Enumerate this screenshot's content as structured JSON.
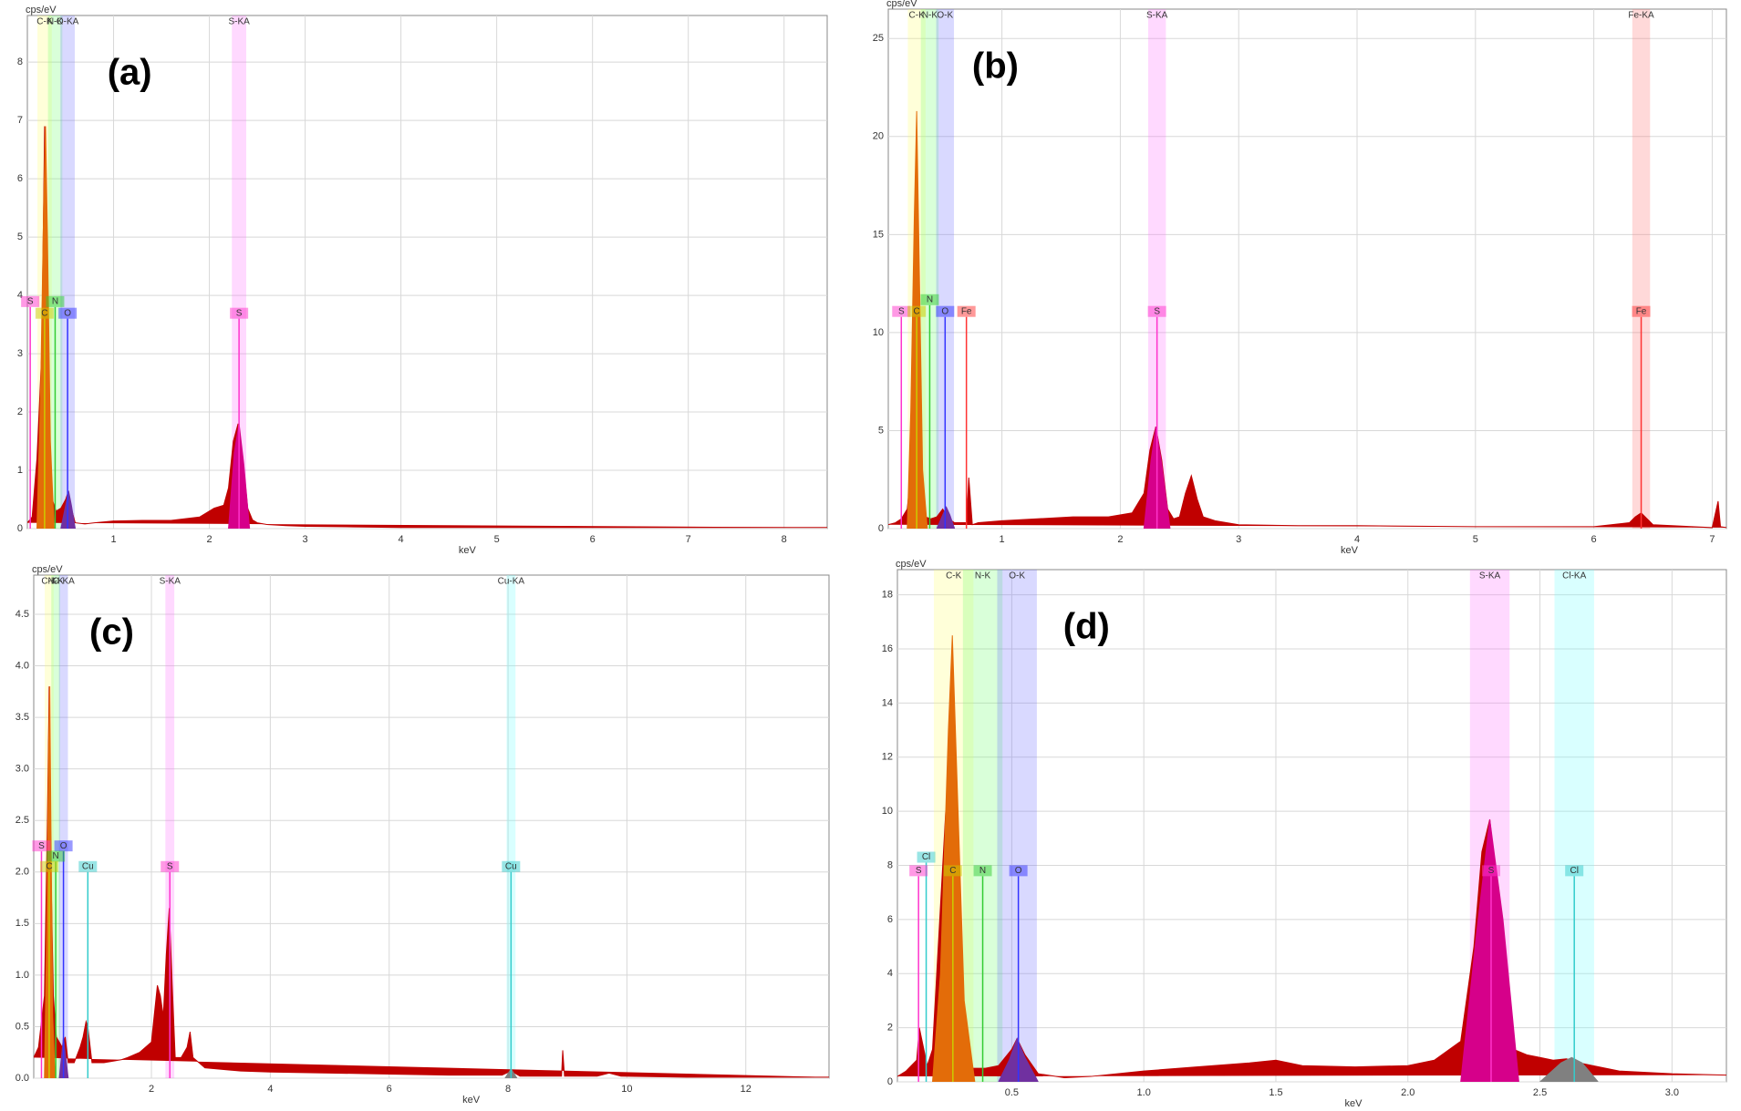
{
  "chart_data": [
    {
      "type": "area",
      "title": "(a)",
      "ylabel": "cps/eV",
      "xlabel": "keV",
      "grid": true,
      "xlim": [
        0.1,
        8.45
      ],
      "ylim": [
        0,
        8.8
      ],
      "xticks": [
        1,
        2,
        3,
        4,
        5,
        6,
        7,
        8
      ],
      "yticks": [
        0,
        1,
        2,
        3,
        4,
        5,
        6,
        7,
        8
      ],
      "series": [
        {
          "color": "#c00000",
          "x": [
            0.1,
            0.15,
            0.2,
            0.25,
            0.28,
            0.3,
            0.33,
            0.36,
            0.4,
            0.45,
            0.5,
            0.52,
            0.55,
            0.6,
            0.7,
            0.8,
            1.0,
            1.3,
            1.6,
            1.9,
            2.05,
            2.15,
            2.2,
            2.25,
            2.3,
            2.35,
            2.4,
            2.45,
            2.5,
            2.6,
            2.8,
            3.0,
            3.5,
            4,
            5,
            6,
            7,
            8,
            8.45
          ],
          "values": [
            0.1,
            0.2,
            1.2,
            3.0,
            6.9,
            4.0,
            1.5,
            0.5,
            0.3,
            0.35,
            0.5,
            0.6,
            0.4,
            0.1,
            0.08,
            0.1,
            0.13,
            0.14,
            0.14,
            0.2,
            0.35,
            0.4,
            0.7,
            1.5,
            1.8,
            1.2,
            0.35,
            0.15,
            0.1,
            0.07,
            0.05,
            0.04,
            0.03,
            0.02,
            0.02,
            0.02,
            0.02,
            0.02,
            0.02
          ]
        },
        {
          "color": "#e36c09",
          "x": [
            0.2,
            0.24,
            0.27,
            0.29,
            0.31,
            0.34,
            0.38
          ],
          "values": [
            0,
            2.5,
            5.5,
            6.9,
            5.0,
            1.5,
            0
          ]
        },
        {
          "color": "#7030a0",
          "x": [
            0.45,
            0.5,
            0.53,
            0.56,
            0.6
          ],
          "values": [
            0,
            0.4,
            0.65,
            0.4,
            0
          ]
        },
        {
          "color": "#d6008a",
          "x": [
            2.2,
            2.26,
            2.31,
            2.36,
            2.42
          ],
          "values": [
            0,
            1.3,
            1.8,
            1.1,
            0
          ]
        }
      ],
      "bands": [
        {
          "label": "C-K",
          "x": 0.28,
          "color": "#ffff66"
        },
        {
          "label": "N-K",
          "x": 0.39,
          "color": "#66ff66"
        },
        {
          "label": "O-KA",
          "x": 0.52,
          "color": "#6666ff"
        },
        {
          "label": "S-KA",
          "x": 2.31,
          "color": "#ff66ff"
        }
      ],
      "markers": [
        {
          "label": "S",
          "x": 0.13,
          "y": 3.8,
          "color": "#ff33cc"
        },
        {
          "label": "N",
          "x": 0.39,
          "y": 3.8,
          "color": "#33cc33"
        },
        {
          "label": "C",
          "x": 0.28,
          "y": 3.6,
          "color": "#cccc00"
        },
        {
          "label": "O",
          "x": 0.52,
          "y": 3.6,
          "color": "#3333ff"
        },
        {
          "label": "S",
          "x": 2.31,
          "y": 3.6,
          "color": "#ff33cc"
        }
      ]
    },
    {
      "type": "area",
      "title": "(b)",
      "ylabel": "cps/eV",
      "xlabel": "keV",
      "grid": true,
      "xlim": [
        0.04,
        7.12
      ],
      "ylim": [
        0,
        26.5
      ],
      "xticks": [
        1,
        2,
        3,
        4,
        5,
        6,
        7
      ],
      "yticks": [
        0,
        5,
        10,
        15,
        20,
        25
      ],
      "series": [
        {
          "color": "#c00000",
          "x": [
            0.04,
            0.1,
            0.15,
            0.2,
            0.25,
            0.3,
            0.35,
            0.4,
            0.45,
            0.5,
            0.55,
            0.6,
            0.65,
            0.7,
            0.72,
            0.75,
            0.8,
            1.0,
            1.3,
            1.6,
            1.9,
            2.1,
            2.2,
            2.25,
            2.3,
            2.35,
            2.4,
            2.45,
            2.5,
            2.55,
            2.6,
            2.65,
            2.7,
            2.8,
            3.0,
            3.5,
            4,
            5,
            6,
            6.3,
            6.35,
            6.4,
            6.45,
            6.5,
            7,
            7.05,
            7.07,
            7.12
          ],
          "values": [
            0.2,
            0.3,
            0.5,
            1.0,
            4,
            1.5,
            0.6,
            0.5,
            0.6,
            1.0,
            0.5,
            0.3,
            0.3,
            0.3,
            2.6,
            0.2,
            0.3,
            0.4,
            0.5,
            0.6,
            0.6,
            0.8,
            1.8,
            4.0,
            5.2,
            3.5,
            1.0,
            0.5,
            0.6,
            1.8,
            2.7,
            1.5,
            0.6,
            0.4,
            0.2,
            0.15,
            0.15,
            0.1,
            0.1,
            0.3,
            0.6,
            0.8,
            0.5,
            0.2,
            0.05,
            1.4,
            0.1,
            0.05
          ]
        },
        {
          "color": "#e36c09",
          "x": [
            0.2,
            0.23,
            0.26,
            0.28,
            0.3,
            0.33,
            0.37
          ],
          "values": [
            0,
            6,
            16,
            21.3,
            14,
            3,
            0
          ]
        },
        {
          "color": "#7030a0",
          "x": [
            0.45,
            0.5,
            0.53,
            0.56,
            0.6
          ],
          "values": [
            0,
            0.7,
            1.1,
            0.7,
            0
          ]
        },
        {
          "color": "#d6008a",
          "x": [
            2.2,
            2.26,
            2.3,
            2.35,
            2.42
          ],
          "values": [
            0,
            3.5,
            5.2,
            3.3,
            0
          ]
        }
      ],
      "bands": [
        {
          "label": "C-K",
          "x": 0.28,
          "color": "#ffff66"
        },
        {
          "label": "N-K",
          "x": 0.39,
          "color": "#66ff66"
        },
        {
          "label": "O-K",
          "x": 0.52,
          "color": "#6666ff"
        },
        {
          "label": "S-KA",
          "x": 2.31,
          "color": "#ff66ff"
        },
        {
          "label": "Fe-KA",
          "x": 6.4,
          "color": "#ff6666"
        }
      ],
      "markers": [
        {
          "label": "S",
          "x": 0.15,
          "y": 10.8,
          "color": "#ff33cc"
        },
        {
          "label": "C",
          "x": 0.28,
          "y": 10.8,
          "color": "#cccc00"
        },
        {
          "label": "N",
          "x": 0.39,
          "y": 11.4,
          "color": "#33cc33"
        },
        {
          "label": "O",
          "x": 0.52,
          "y": 10.8,
          "color": "#3333ff"
        },
        {
          "label": "Fe",
          "x": 0.7,
          "y": 10.8,
          "color": "#ff3333"
        },
        {
          "label": "S",
          "x": 2.31,
          "y": 10.8,
          "color": "#ff33cc"
        },
        {
          "label": "Fe",
          "x": 6.4,
          "y": 10.8,
          "color": "#ff3333"
        }
      ]
    },
    {
      "type": "area",
      "title": "(c)",
      "ylabel": "cps/eV",
      "xlabel": "keV",
      "grid": true,
      "xlim": [
        0.02,
        13.4
      ],
      "ylim": [
        0,
        4.88
      ],
      "xticks": [
        2,
        4,
        6,
        8,
        10,
        12
      ],
      "yticks": [
        {
          "value": 0,
          "label": "0.0"
        },
        0.5,
        {
          "value": 1,
          "label": "1.0"
        },
        1.5,
        {
          "value": 2,
          "label": "2.0"
        },
        2.5,
        {
          "value": 3,
          "label": "3.0"
        },
        3.5,
        {
          "value": 4,
          "label": "4.0"
        },
        4.5
      ],
      "series": [
        {
          "color": "#c00000",
          "x": [
            0.02,
            0.1,
            0.2,
            0.25,
            0.28,
            0.31,
            0.35,
            0.4,
            0.5,
            0.55,
            0.6,
            0.7,
            0.8,
            0.85,
            0.9,
            0.93,
            0.97,
            1.0,
            1.2,
            1.5,
            1.6,
            1.8,
            2.0,
            2.1,
            2.15,
            2.2,
            2.25,
            2.3,
            2.35,
            2.4,
            2.5,
            2.6,
            2.65,
            2.7,
            2.9,
            3.5,
            4,
            5,
            6,
            7,
            7.9,
            8.05,
            8.2,
            8.9,
            8.92,
            8.95,
            9.5,
            9.7,
            9.9,
            11,
            12,
            13.4
          ],
          "values": [
            0.2,
            0.3,
            0.8,
            2.5,
            3.8,
            2.0,
            0.8,
            0.4,
            0.3,
            0.4,
            0.15,
            0.15,
            0.3,
            0.4,
            0.55,
            0.5,
            0.3,
            0.15,
            0.15,
            0.18,
            0.2,
            0.25,
            0.35,
            0.9,
            0.8,
            0.6,
            1.2,
            1.65,
            0.9,
            0.2,
            0.2,
            0.3,
            0.45,
            0.2,
            0.1,
            0.07,
            0.06,
            0.05,
            0.04,
            0.03,
            0.03,
            0.07,
            0.02,
            0.02,
            0.27,
            0.02,
            0.02,
            0.05,
            0.02,
            0.01,
            0.01,
            0.01
          ]
        },
        {
          "color": "#e36c09",
          "x": [
            0.2,
            0.24,
            0.27,
            0.29,
            0.31,
            0.34,
            0.38
          ],
          "values": [
            0,
            1.5,
            3.2,
            3.8,
            2.4,
            0.6,
            0
          ]
        },
        {
          "color": "#7030a0",
          "x": [
            0.45,
            0.52,
            0.6
          ],
          "values": [
            0,
            0.4,
            0
          ]
        },
        {
          "color": "#808080",
          "x": [
            7.95,
            8.05,
            8.15
          ],
          "values": [
            0,
            0.09,
            0
          ]
        }
      ],
      "bands": [
        {
          "label": "C-K",
          "x": 0.28,
          "color": "#ffff66"
        },
        {
          "label": "N-K",
          "x": 0.39,
          "color": "#66ff66"
        },
        {
          "label": "O-KA",
          "x": 0.52,
          "color": "#6666ff"
        },
        {
          "label": "S-KA",
          "x": 2.31,
          "color": "#ff66ff"
        },
        {
          "label": "Cu-KA",
          "x": 8.05,
          "color": "#66ffff"
        }
      ],
      "markers": [
        {
          "label": "S",
          "x": 0.15,
          "y": 2.2,
          "color": "#ff33cc"
        },
        {
          "label": "O",
          "x": 0.52,
          "y": 2.2,
          "color": "#3333ff"
        },
        {
          "label": "N",
          "x": 0.39,
          "y": 2.1,
          "color": "#33cc33"
        },
        {
          "label": "C",
          "x": 0.28,
          "y": 2.0,
          "color": "#cccc00"
        },
        {
          "label": "Cu",
          "x": 0.93,
          "y": 2.0,
          "color": "#33cccc"
        },
        {
          "label": "S",
          "x": 2.31,
          "y": 2.0,
          "color": "#ff33cc"
        },
        {
          "label": "Cu",
          "x": 8.05,
          "y": 2.0,
          "color": "#33cccc"
        }
      ]
    },
    {
      "type": "area",
      "title": "(d)",
      "ylabel": "cps/eV",
      "xlabel": "keV",
      "grid": true,
      "xlim": [
        0.067,
        3.206
      ],
      "ylim": [
        0,
        18.93
      ],
      "xticks": [
        0.5,
        {
          "value": 1,
          "label": "1.0"
        },
        1.5,
        {
          "value": 2,
          "label": "2.0"
        },
        2.5,
        {
          "value": 3,
          "label": "3.0"
        }
      ],
      "yticks": [
        0,
        2,
        4,
        6,
        8,
        10,
        12,
        14,
        16,
        18
      ],
      "series": [
        {
          "color": "#c00000",
          "x": [
            0.067,
            0.1,
            0.14,
            0.15,
            0.18,
            0.2,
            0.25,
            0.3,
            0.35,
            0.4,
            0.45,
            0.5,
            0.52,
            0.55,
            0.6,
            0.7,
            0.8,
            1.0,
            1.2,
            1.4,
            1.5,
            1.6,
            1.8,
            2.0,
            2.1,
            2.2,
            2.25,
            2.28,
            2.31,
            2.34,
            2.37,
            2.4,
            2.45,
            2.5,
            2.55,
            2.6,
            2.65,
            2.7,
            2.8,
            2.9,
            3.0,
            3.206
          ],
          "values": [
            0.2,
            0.4,
            0.8,
            2.0,
            0.6,
            1.2,
            10,
            1.5,
            0.5,
            0.5,
            0.6,
            1.2,
            1.6,
            1.0,
            0.3,
            0.15,
            0.2,
            0.4,
            0.55,
            0.7,
            0.8,
            0.6,
            0.55,
            0.6,
            0.8,
            1.5,
            5,
            8.5,
            9.7,
            7,
            3,
            1.2,
            1.0,
            0.9,
            0.8,
            0.85,
            0.7,
            0.6,
            0.4,
            0.35,
            0.3,
            0.25
          ]
        },
        {
          "color": "#e36c09",
          "x": [
            0.2,
            0.23,
            0.26,
            0.275,
            0.29,
            0.32,
            0.36
          ],
          "values": [
            0,
            4,
            13,
            16.5,
            12,
            3,
            0
          ]
        },
        {
          "color": "#7030a0",
          "x": [
            0.45,
            0.49,
            0.52,
            0.55,
            0.6
          ],
          "values": [
            0,
            0.8,
            1.6,
            0.9,
            0
          ]
        },
        {
          "color": "#d6008a",
          "x": [
            2.2,
            2.26,
            2.31,
            2.36,
            2.42
          ],
          "values": [
            0,
            5.5,
            9.7,
            6,
            0
          ]
        },
        {
          "color": "#808080",
          "x": [
            2.5,
            2.58,
            2.62,
            2.66,
            2.72
          ],
          "values": [
            0,
            0.7,
            0.9,
            0.7,
            0
          ]
        }
      ],
      "bands": [
        {
          "label": "C-K",
          "x": 0.28,
          "color": "#ffff66"
        },
        {
          "label": "N-K",
          "x": 0.39,
          "color": "#66ff66"
        },
        {
          "label": "O-K",
          "x": 0.52,
          "color": "#6666ff"
        },
        {
          "label": "S-KA",
          "x": 2.31,
          "color": "#ff66ff"
        },
        {
          "label": "Cl-KA",
          "x": 2.63,
          "color": "#66ffff"
        }
      ],
      "markers": [
        {
          "label": "S",
          "x": 0.147,
          "y": 7.6,
          "color": "#ff33cc"
        },
        {
          "label": "Cl",
          "x": 0.176,
          "y": 8.1,
          "color": "#33cccc"
        },
        {
          "label": "C",
          "x": 0.277,
          "y": 7.6,
          "color": "#cccc00"
        },
        {
          "label": "N",
          "x": 0.39,
          "y": 7.6,
          "color": "#33cc33"
        },
        {
          "label": "O",
          "x": 0.525,
          "y": 7.6,
          "color": "#3333ff"
        },
        {
          "label": "S",
          "x": 2.315,
          "y": 7.6,
          "color": "#ff33cc"
        },
        {
          "label": "Cl",
          "x": 2.63,
          "y": 7.6,
          "color": "#33cccc"
        }
      ]
    }
  ]
}
